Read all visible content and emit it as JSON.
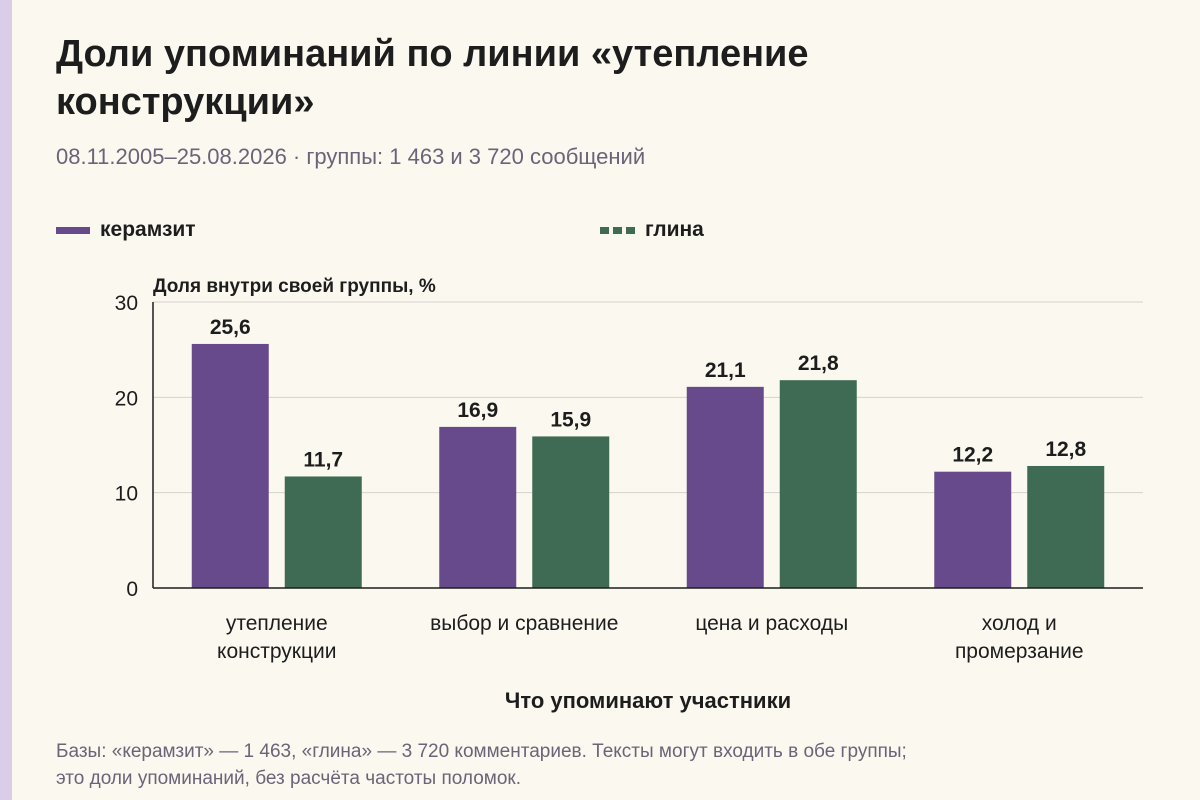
{
  "title": "Доли упоминаний по линии «утепление конструкции»",
  "subtitle": "08.11.2005–25.08.2026 · группы: 1 463 и 3 720 сообщений",
  "footnote_line1": "Базы: «керамзит» — 1 463, «глина» — 3 720 комментариев. Тексты могут входить в обе группы;",
  "footnote_line2": "это доли упоминаний, без расчёта частоты поломок.",
  "colors": {
    "keramzit": "#664a8c",
    "glina": "#3f6b55",
    "background": "#fbf8ef",
    "accent_strip": "#d9cdea"
  },
  "chart_data": {
    "type": "bar",
    "ylabel": "Доля внутри своей группы, %",
    "xlabel": "Что упоминают участники",
    "ylim": [
      0,
      30
    ],
    "yticks": [
      "0",
      "10",
      "20",
      "30"
    ],
    "grid": true,
    "legend_position": "top",
    "categories": [
      [
        "утепление",
        "конструкции"
      ],
      [
        "выбор и сравнение"
      ],
      [
        "цена и расходы"
      ],
      [
        "холод и",
        "промерзание"
      ]
    ],
    "series": [
      {
        "name": "керамзит",
        "values": [
          25.6,
          16.9,
          21.1,
          12.2
        ],
        "labels": [
          "25,6",
          "16,9",
          "21,1",
          "12,2"
        ],
        "color": "#664a8c"
      },
      {
        "name": "глина",
        "values": [
          11.7,
          15.9,
          21.8,
          12.8
        ],
        "labels": [
          "11,7",
          "15,9",
          "21,8",
          "12,8"
        ],
        "color": "#3f6b55"
      }
    ]
  }
}
